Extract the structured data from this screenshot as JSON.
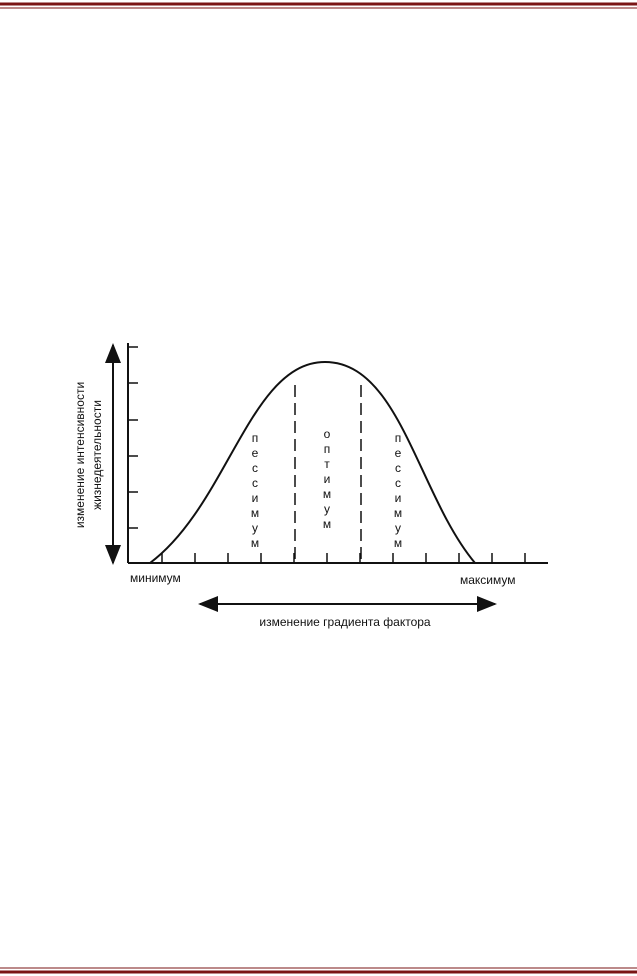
{
  "diagram": {
    "y_axis_label": [
      "изменение интенсивности",
      "жизнедеятельности"
    ],
    "zones": [
      "пессимум",
      "оптимум",
      "пессимум"
    ],
    "x_min_label": "минимум",
    "x_max_label": "максимум",
    "x_axis_label": "изменение градиента фактора"
  }
}
